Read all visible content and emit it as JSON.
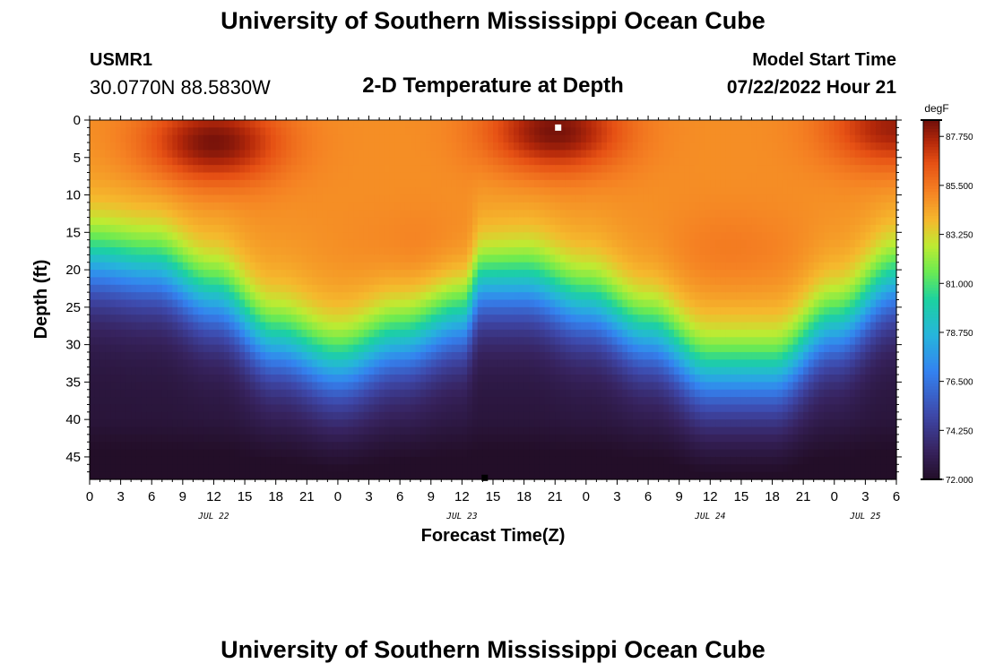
{
  "header": {
    "title": "University of Southern Mississippi Ocean Cube",
    "station": "USMR1",
    "coords": "30.0770N  88.5830W",
    "subtitle": "2-D Temperature at Depth",
    "model_start_label": "Model Start Time",
    "model_start_value": "07/22/2022 Hour 21"
  },
  "footer": {
    "title": "University of Southern Mississippi Ocean Cube"
  },
  "chart_data": {
    "type": "heatmap",
    "title": "2-D Temperature at Depth",
    "xlabel": "Forecast Time(Z)",
    "ylabel": "Depth (ft)",
    "x_range_hours": [
      0,
      78
    ],
    "y_range_ft": [
      0,
      48
    ],
    "x_tick_labels": [
      "0",
      "3",
      "6",
      "9",
      "12",
      "15",
      "18",
      "21",
      "0",
      "3",
      "6",
      "9",
      "12",
      "15",
      "18",
      "21",
      "0",
      "3",
      "6",
      "9",
      "12",
      "15",
      "18",
      "21",
      "0",
      "3",
      "6"
    ],
    "y_tick_labels": [
      "0",
      "5",
      "10",
      "15",
      "20",
      "25",
      "30",
      "35",
      "40",
      "45"
    ],
    "date_labels": [
      {
        "label": "JUL 22",
        "hour": 12
      },
      {
        "label": "JUL 23",
        "hour": 36
      },
      {
        "label": "JUL 24",
        "hour": 60
      },
      {
        "label": "JUL 25",
        "hour": 75
      }
    ],
    "colorbar": {
      "unit": "degF",
      "min": 72.0,
      "max": 88.5,
      "tick_labels": [
        "87.750",
        "85.500",
        "83.250",
        "81.000",
        "78.750",
        "76.500",
        "74.250",
        "72.000"
      ],
      "tick_values": [
        87.75,
        85.5,
        83.25,
        81.0,
        78.75,
        76.5,
        74.25,
        72.0
      ]
    },
    "thermocline_depth_ft_by_hour": [
      {
        "hour": 0,
        "depth": 19
      },
      {
        "hour": 6,
        "depth": 20
      },
      {
        "hour": 12,
        "depth": 24
      },
      {
        "hour": 18,
        "depth": 30
      },
      {
        "hour": 24,
        "depth": 33
      },
      {
        "hour": 30,
        "depth": 30
      },
      {
        "hour": 36,
        "depth": 27
      },
      {
        "hour": 38,
        "depth": 22
      },
      {
        "hour": 42,
        "depth": 22
      },
      {
        "hour": 48,
        "depth": 25
      },
      {
        "hour": 54,
        "depth": 29
      },
      {
        "hour": 60,
        "depth": 34
      },
      {
        "hour": 66,
        "depth": 34
      },
      {
        "hour": 72,
        "depth": 28
      },
      {
        "hour": 78,
        "depth": 22
      }
    ],
    "surface_warm_cores": [
      {
        "hour": 12,
        "depth": 3,
        "value": 88.5
      },
      {
        "hour": 45,
        "depth": 1.5,
        "value": 88.5
      },
      {
        "hour": 78,
        "depth": 1,
        "value": 88.0
      }
    ],
    "markers": [
      {
        "color": "#ffffff",
        "hour": 45.3,
        "depth": 1
      },
      {
        "color": "#000000",
        "hour": 38.2,
        "depth": 47.8
      }
    ]
  }
}
